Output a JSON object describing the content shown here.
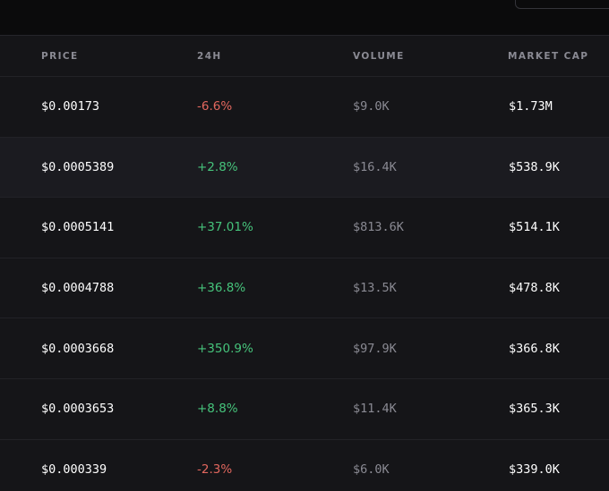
{
  "columns": {
    "price": "PRICE",
    "change": "24H",
    "volume": "VOLUME",
    "market_cap": "MARKET CAP"
  },
  "rows": [
    {
      "price": "$0.00173",
      "change": "-6.6%",
      "direction": "down",
      "volume": "$9.0K",
      "market_cap": "$1.73M"
    },
    {
      "price": "$0.0005389",
      "change": "+2.8%",
      "direction": "up",
      "volume": "$16.4K",
      "market_cap": "$538.9K"
    },
    {
      "price": "$0.0005141",
      "change": "+37.01%",
      "direction": "up",
      "volume": "$813.6K",
      "market_cap": "$514.1K"
    },
    {
      "price": "$0.0004788",
      "change": "+36.8%",
      "direction": "up",
      "volume": "$13.5K",
      "market_cap": "$478.8K"
    },
    {
      "price": "$0.0003668",
      "change": "+350.9%",
      "direction": "up",
      "volume": "$97.9K",
      "market_cap": "$366.8K"
    },
    {
      "price": "$0.0003653",
      "change": "+8.8%",
      "direction": "up",
      "volume": "$11.4K",
      "market_cap": "$365.3K"
    },
    {
      "price": "$0.000339",
      "change": "-2.3%",
      "direction": "down",
      "volume": "$6.0K",
      "market_cap": "$339.0K"
    }
  ],
  "colors": {
    "positive": "#46c37b",
    "negative": "#e2675e"
  }
}
